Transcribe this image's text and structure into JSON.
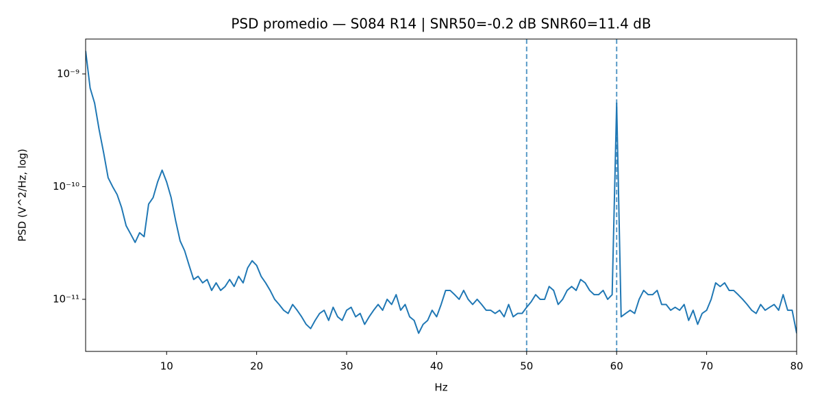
{
  "chart_data": {
    "type": "line",
    "title": "PSD promedio — S084 R14 | SNR50=-0.2 dB  SNR60=11.4 dB",
    "x_label": "Hz",
    "y_label": "PSD (V^2/Hz, log)",
    "log_y": true,
    "grid": false,
    "xlim": [
      1,
      80
    ],
    "ylim": [
      3.45e-12,
      2.04e-09
    ],
    "xticks": [
      10,
      20,
      30,
      40,
      50,
      60,
      70,
      80
    ],
    "yticks": [
      {
        "value": 1e-11,
        "label": "10⁻¹¹"
      },
      {
        "value": 1e-10,
        "label": "10⁻¹⁰"
      },
      {
        "value": 1e-09,
        "label": "10⁻⁹"
      }
    ],
    "vlines": [
      50,
      60
    ],
    "vline_color": "#1f77b4",
    "x": [
      1,
      1.5,
      2,
      2.5,
      3,
      3.5,
      4,
      4.5,
      5,
      5.5,
      6,
      6.5,
      7,
      7.5,
      8,
      8.5,
      9,
      9.5,
      10,
      10.5,
      11,
      11.5,
      12,
      12.5,
      13,
      13.5,
      14,
      14.5,
      15,
      15.5,
      16,
      16.5,
      17,
      17.5,
      18,
      18.5,
      19,
      19.5,
      20,
      20.5,
      21,
      21.5,
      22,
      22.5,
      23,
      23.5,
      24,
      24.5,
      25,
      25.5,
      26,
      26.5,
      27,
      27.5,
      28,
      28.5,
      29,
      29.5,
      30,
      30.5,
      31,
      31.5,
      32,
      32.5,
      33,
      33.5,
      34,
      34.5,
      35,
      35.5,
      36,
      36.5,
      37,
      37.5,
      38,
      38.5,
      39,
      39.5,
      40,
      40.5,
      41,
      41.5,
      42,
      42.5,
      43,
      43.5,
      44,
      44.5,
      45,
      45.5,
      46,
      46.5,
      47,
      47.5,
      48,
      48.5,
      49,
      49.5,
      50,
      50.5,
      51,
      51.5,
      52,
      52.5,
      53,
      53.5,
      54,
      54.5,
      55,
      55.5,
      56,
      56.5,
      57,
      57.5,
      58,
      58.5,
      59,
      59.5,
      60,
      60.5,
      61,
      61.5,
      62,
      62.5,
      63,
      63.5,
      64,
      64.5,
      65,
      65.5,
      66,
      66.5,
      67,
      67.5,
      68,
      68.5,
      69,
      69.5,
      70,
      70.5,
      71,
      71.5,
      72,
      72.5,
      73,
      73.5,
      74,
      74.5,
      75,
      75.5,
      76,
      76.5,
      77,
      77.5,
      78,
      78.5,
      79,
      79.5,
      80
    ],
    "series": [
      {
        "color": "#1f77b4",
        "values": [
          1.6e-09,
          7.5e-10,
          5.5e-10,
          3.2e-10,
          2e-10,
          1.2e-10,
          1e-10,
          8.5e-11,
          6.5e-11,
          4.5e-11,
          3.8e-11,
          3.2e-11,
          3.9e-11,
          3.6e-11,
          7e-11,
          8e-11,
          1.1e-10,
          1.4e-10,
          1.1e-10,
          8e-11,
          5e-11,
          3.3e-11,
          2.7e-11,
          2e-11,
          1.5e-11,
          1.6e-11,
          1.4e-11,
          1.5e-11,
          1.2e-11,
          1.4e-11,
          1.2e-11,
          1.3e-11,
          1.5e-11,
          1.3e-11,
          1.6e-11,
          1.4e-11,
          1.9e-11,
          2.2e-11,
          2e-11,
          1.6e-11,
          1.4e-11,
          1.2e-11,
          1e-11,
          9e-12,
          8e-12,
          7.5e-12,
          9e-12,
          8e-12,
          7e-12,
          6e-12,
          5.5e-12,
          6.5e-12,
          7.5e-12,
          8e-12,
          6.5e-12,
          8.5e-12,
          7e-12,
          6.5e-12,
          8e-12,
          8.5e-12,
          7e-12,
          7.5e-12,
          6e-12,
          7e-12,
          8e-12,
          9e-12,
          8e-12,
          1e-11,
          9e-12,
          1.1e-11,
          8e-12,
          9e-12,
          7e-12,
          6.5e-12,
          5e-12,
          6e-12,
          6.5e-12,
          8e-12,
          7e-12,
          9e-12,
          1.2e-11,
          1.2e-11,
          1.1e-11,
          1e-11,
          1.2e-11,
          1e-11,
          9e-12,
          1e-11,
          9e-12,
          8e-12,
          8e-12,
          7.5e-12,
          8e-12,
          7e-12,
          9e-12,
          7e-12,
          7.5e-12,
          7.5e-12,
          8.5e-12,
          9.5e-12,
          1.1e-11,
          1e-11,
          1e-11,
          1.3e-11,
          1.2e-11,
          9e-12,
          1e-11,
          1.2e-11,
          1.3e-11,
          1.2e-11,
          1.5e-11,
          1.4e-11,
          1.2e-11,
          1.1e-11,
          1.1e-11,
          1.2e-11,
          1e-11,
          1.1e-11,
          5.5e-10,
          7e-12,
          7.5e-12,
          8e-12,
          7.5e-12,
          1e-11,
          1.2e-11,
          1.1e-11,
          1.1e-11,
          1.2e-11,
          9e-12,
          9e-12,
          8e-12,
          8.5e-12,
          8e-12,
          9e-12,
          6.5e-12,
          8e-12,
          6e-12,
          7.5e-12,
          8e-12,
          1e-11,
          1.4e-11,
          1.3e-11,
          1.4e-11,
          1.2e-11,
          1.2e-11,
          1.1e-11,
          1e-11,
          9e-12,
          8e-12,
          7.5e-12,
          9e-12,
          8e-12,
          8.5e-12,
          9e-12,
          8e-12,
          1.1e-11,
          8e-12,
          8e-12,
          5e-12
        ]
      }
    ]
  }
}
